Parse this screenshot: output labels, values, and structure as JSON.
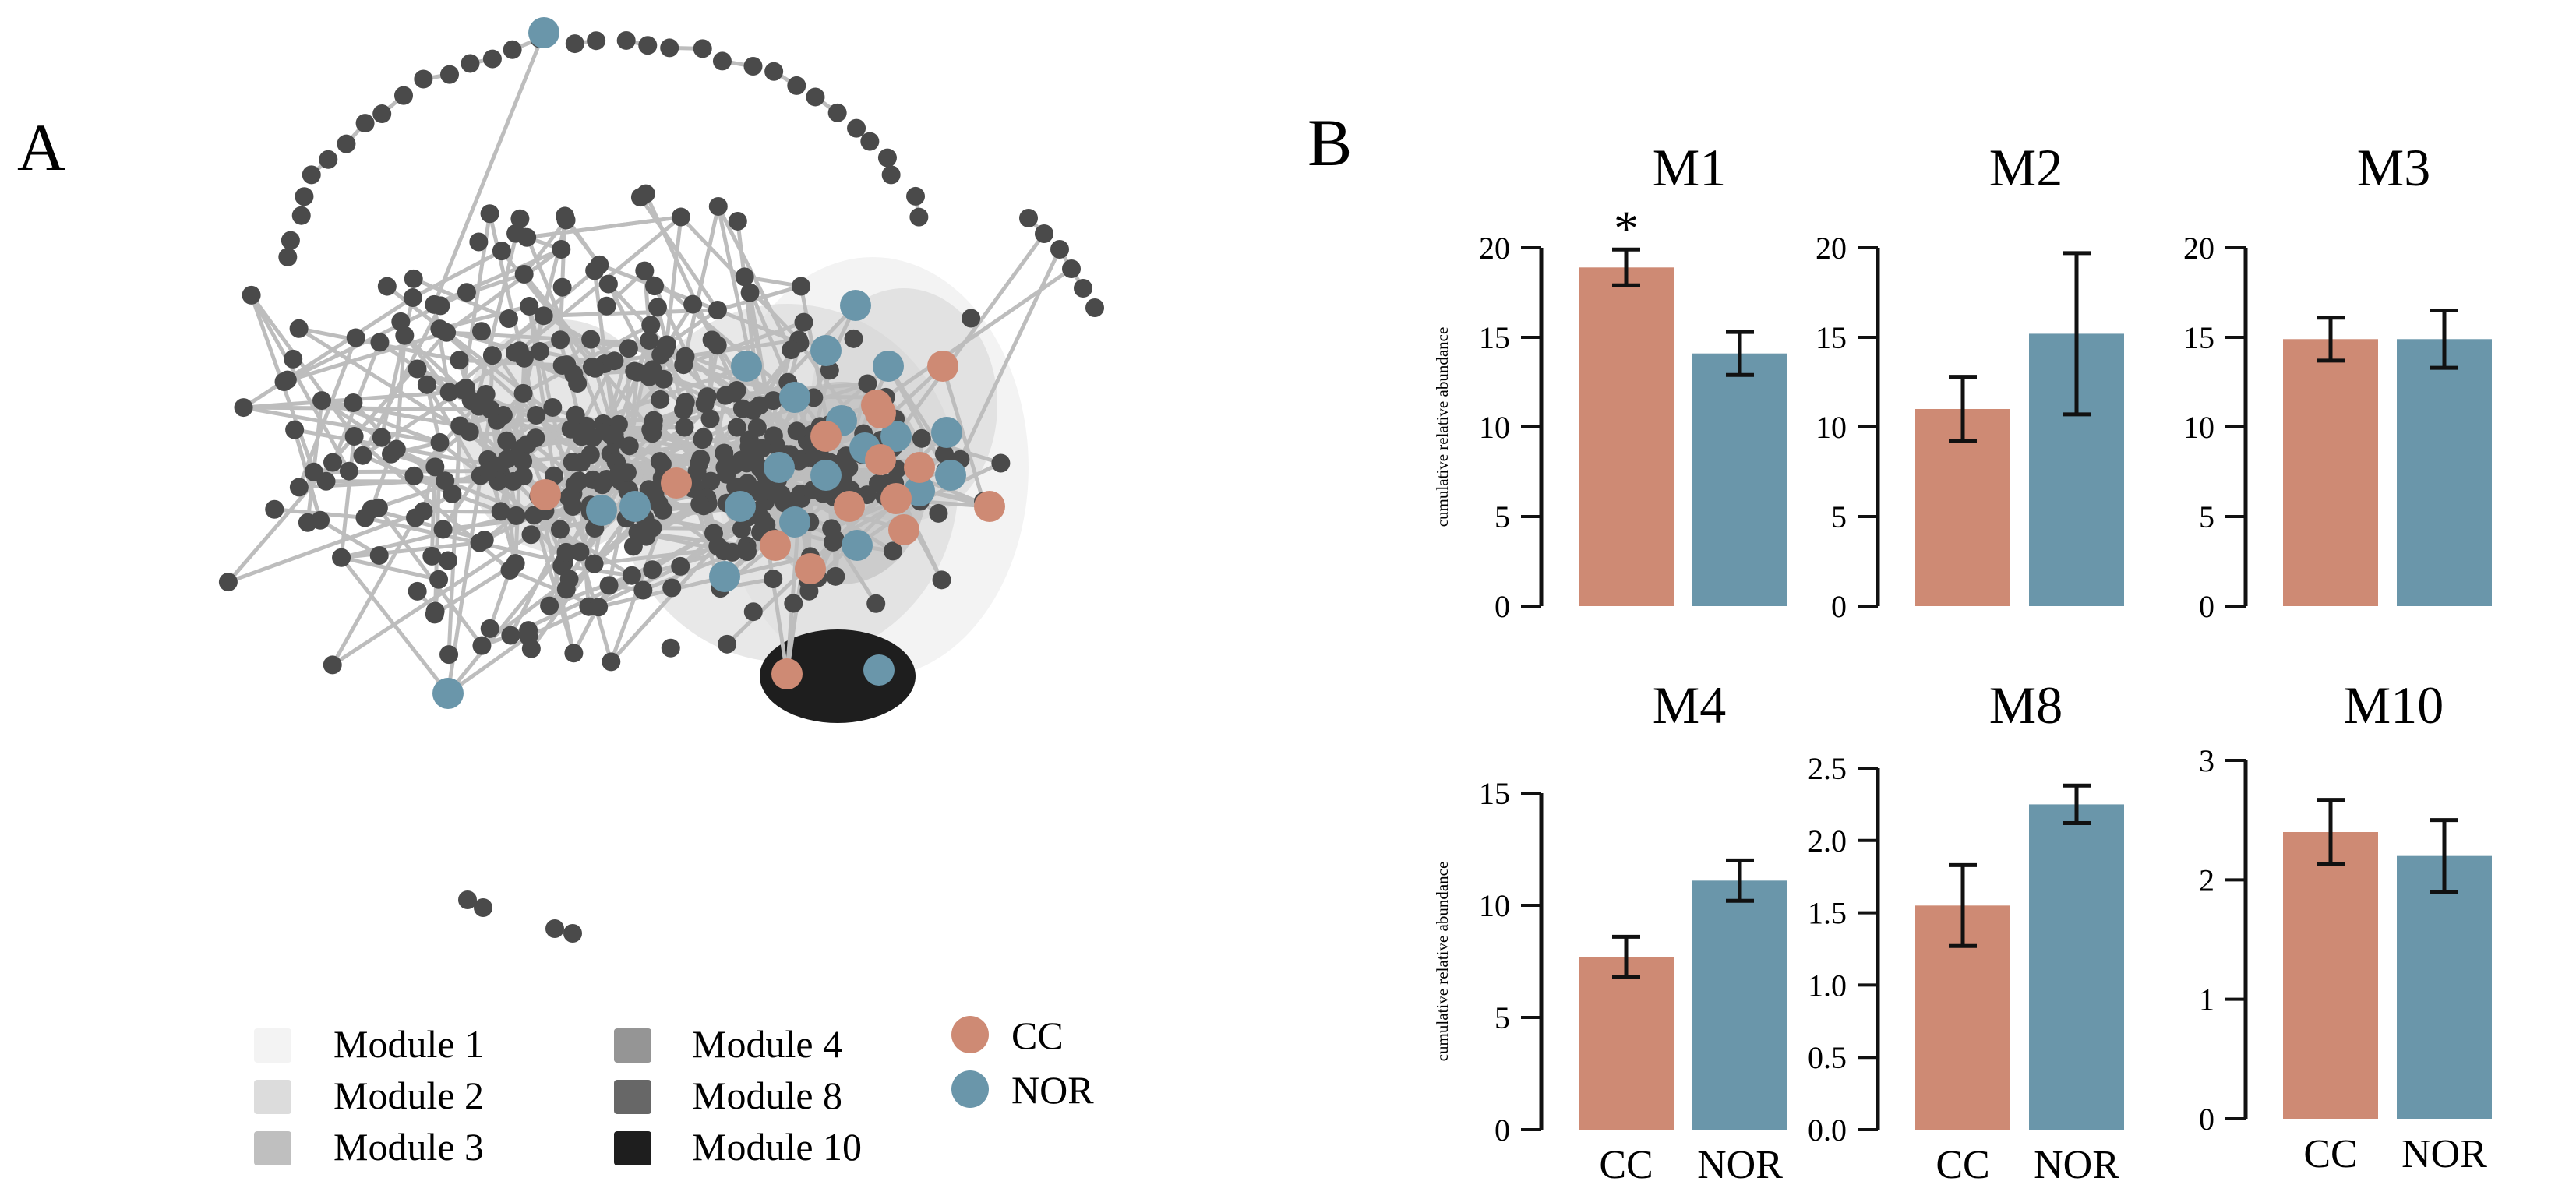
{
  "panels": {
    "a_label": "A",
    "b_label": "B"
  },
  "colors": {
    "cc": "#ce8a74",
    "nor": "#6a96aa",
    "node": "#4a4a4a",
    "edge": "#bdbdbd",
    "module_1": "#f3f3f3",
    "module_2": "#dcdcdc",
    "module_3": "#bfbfbf",
    "module_4": "#959595",
    "module_8": "#676767",
    "module_10": "#1e1e1e"
  },
  "network_legend": {
    "modules": [
      "Module 1",
      "Module 2",
      "Module 3",
      "Module 4",
      "Module 8",
      "Module 10"
    ],
    "groups": [
      "CC",
      "NOR"
    ]
  },
  "chart_data": [
    {
      "type": "bar",
      "title": "M1",
      "categories": [
        "CC",
        "NOR"
      ],
      "values": [
        18.9,
        14.1
      ],
      "errors": [
        1.0,
        1.2
      ],
      "ylim": [
        0,
        20
      ],
      "yticks": [
        "0",
        "5",
        "10",
        "15",
        "20"
      ],
      "ylabel": "cumulative relative abundance",
      "annotation": "*",
      "annotated_bar": 0,
      "show_xlabels": false
    },
    {
      "type": "bar",
      "title": "M2",
      "categories": [
        "CC",
        "NOR"
      ],
      "values": [
        11.0,
        15.2
      ],
      "errors": [
        1.8,
        4.5
      ],
      "ylim": [
        0,
        20
      ],
      "yticks": [
        "0",
        "5",
        "10",
        "15",
        "20"
      ],
      "ylabel": "",
      "annotation": "",
      "annotated_bar": -1,
      "show_xlabels": false
    },
    {
      "type": "bar",
      "title": "M3",
      "categories": [
        "CC",
        "NOR"
      ],
      "values": [
        14.9,
        14.9
      ],
      "errors": [
        1.2,
        1.6
      ],
      "ylim": [
        0,
        20
      ],
      "yticks": [
        "0",
        "5",
        "10",
        "15",
        "20"
      ],
      "ylabel": "",
      "annotation": "",
      "annotated_bar": -1,
      "show_xlabels": false
    },
    {
      "type": "bar",
      "title": "M4",
      "categories": [
        "CC",
        "NOR"
      ],
      "values": [
        7.7,
        11.1
      ],
      "errors": [
        0.9,
        0.9
      ],
      "ylim": [
        0,
        15
      ],
      "yticks": [
        "0",
        "5",
        "10",
        "15"
      ],
      "ylabel": "cumulative relative abundance",
      "annotation": "",
      "annotated_bar": -1,
      "show_xlabels": true
    },
    {
      "type": "bar",
      "title": "M8",
      "categories": [
        "CC",
        "NOR"
      ],
      "values": [
        1.55,
        2.25
      ],
      "errors": [
        0.28,
        0.13
      ],
      "ylim": [
        0,
        2.5
      ],
      "yticks": [
        "0.0",
        "0.5",
        "1.0",
        "1.5",
        "2.0",
        "2.5"
      ],
      "ylabel": "",
      "annotation": "",
      "annotated_bar": -1,
      "show_xlabels": true
    },
    {
      "type": "bar",
      "title": "M10",
      "categories": [
        "CC",
        "NOR"
      ],
      "values": [
        2.4,
        2.2
      ],
      "errors": [
        0.27,
        0.3
      ],
      "ylim": [
        0,
        3
      ],
      "yticks": [
        "0",
        "1",
        "2",
        "3"
      ],
      "ylabel": "",
      "annotation": "",
      "annotated_bar": -1,
      "show_xlabels": true
    }
  ]
}
